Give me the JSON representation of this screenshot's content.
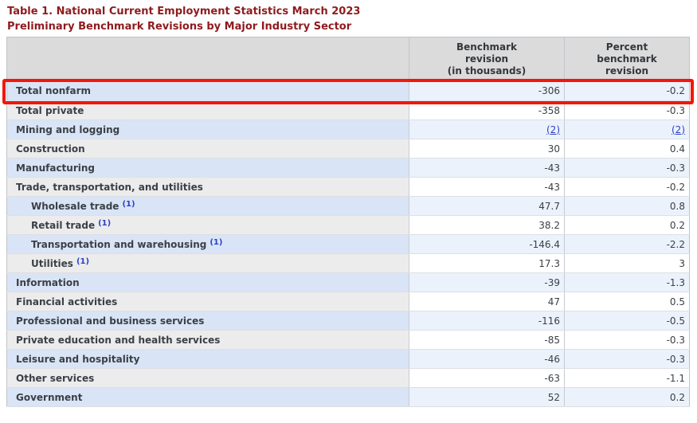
{
  "page": {
    "title_line1": "Table 1. National Current Employment Statistics March 2023",
    "title_line2": "Preliminary Benchmark Revisions by Major Industry Sector"
  },
  "table": {
    "header": {
      "label_column": "",
      "benchmark_lines": [
        "Benchmark",
        "revision",
        "(in thousands)"
      ],
      "percent_lines": [
        "Percent",
        "benchmark",
        "revision"
      ]
    },
    "rows": [
      {
        "label": "Total nonfarm",
        "footnote": "",
        "indent": false,
        "benchmark": "-306",
        "percent": "-0.2",
        "shade": "blue",
        "highlighted": true,
        "values_are_links": false
      },
      {
        "label": "Total private",
        "footnote": "",
        "indent": false,
        "benchmark": "-358",
        "percent": "-0.3",
        "shade": "gray",
        "highlighted": false,
        "values_are_links": false
      },
      {
        "label": "Mining and logging",
        "footnote": "",
        "indent": false,
        "benchmark": "(2)",
        "percent": "(2)",
        "shade": "blue",
        "highlighted": false,
        "values_are_links": true
      },
      {
        "label": "Construction",
        "footnote": "",
        "indent": false,
        "benchmark": "30",
        "percent": "0.4",
        "shade": "gray",
        "highlighted": false,
        "values_are_links": false
      },
      {
        "label": "Manufacturing",
        "footnote": "",
        "indent": false,
        "benchmark": "-43",
        "percent": "-0.3",
        "shade": "blue",
        "highlighted": false,
        "values_are_links": false
      },
      {
        "label": "Trade, transportation, and utilities",
        "footnote": "",
        "indent": false,
        "benchmark": "-43",
        "percent": "-0.2",
        "shade": "gray",
        "highlighted": false,
        "values_are_links": false
      },
      {
        "label": "Wholesale trade",
        "footnote": "(1)",
        "indent": true,
        "benchmark": "47.7",
        "percent": "0.8",
        "shade": "blue",
        "highlighted": false,
        "values_are_links": false
      },
      {
        "label": "Retail trade",
        "footnote": "(1)",
        "indent": true,
        "benchmark": "38.2",
        "percent": "0.2",
        "shade": "gray",
        "highlighted": false,
        "values_are_links": false
      },
      {
        "label": "Transportation and warehousing",
        "footnote": "(1)",
        "indent": true,
        "benchmark": "-146.4",
        "percent": "-2.2",
        "shade": "blue",
        "highlighted": false,
        "values_are_links": false
      },
      {
        "label": "Utilities",
        "footnote": "(1)",
        "indent": true,
        "benchmark": "17.3",
        "percent": "3",
        "shade": "gray",
        "highlighted": false,
        "values_are_links": false
      },
      {
        "label": "Information",
        "footnote": "",
        "indent": false,
        "benchmark": "-39",
        "percent": "-1.3",
        "shade": "blue",
        "highlighted": false,
        "values_are_links": false
      },
      {
        "label": "Financial activities",
        "footnote": "",
        "indent": false,
        "benchmark": "47",
        "percent": "0.5",
        "shade": "gray",
        "highlighted": false,
        "values_are_links": false
      },
      {
        "label": "Professional and business services",
        "footnote": "",
        "indent": false,
        "benchmark": "-116",
        "percent": "-0.5",
        "shade": "blue",
        "highlighted": false,
        "values_are_links": false
      },
      {
        "label": "Private education and health services",
        "footnote": "",
        "indent": false,
        "benchmark": "-85",
        "percent": "-0.3",
        "shade": "gray",
        "highlighted": false,
        "values_are_links": false
      },
      {
        "label": "Leisure and hospitality",
        "footnote": "",
        "indent": false,
        "benchmark": "-46",
        "percent": "-0.3",
        "shade": "blue",
        "highlighted": false,
        "values_are_links": false
      },
      {
        "label": "Other services",
        "footnote": "",
        "indent": false,
        "benchmark": "-63",
        "percent": "-1.1",
        "shade": "gray",
        "highlighted": false,
        "values_are_links": false
      },
      {
        "label": "Government",
        "footnote": "",
        "indent": false,
        "benchmark": "52",
        "percent": "0.2",
        "shade": "blue",
        "highlighted": false,
        "values_are_links": false
      }
    ]
  },
  "annotation": {
    "highlighted_row_label": "Total nonfarm",
    "highlight_color": "#f2170a"
  },
  "colors": {
    "title_red": "#8e1b1e",
    "link_blue": "#2d41c7",
    "row_blue_label": "#d9e5f6",
    "row_blue_value": "#ecf2fb",
    "row_gray_label": "#ececed",
    "header_gray": "#dbdbdb"
  }
}
